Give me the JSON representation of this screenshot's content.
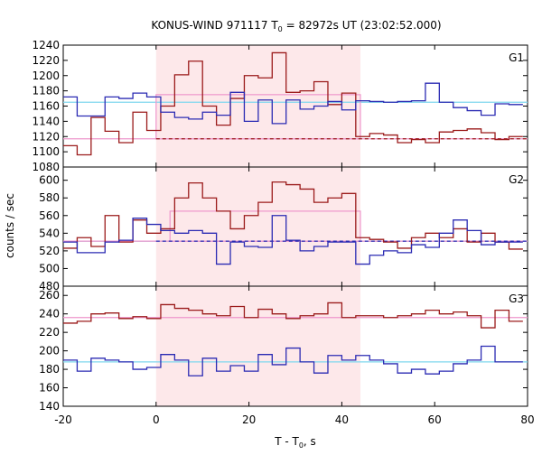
{
  "chart_data": {
    "type": "line",
    "title": "KONUS-WIND 971117 T",
    "title_sub": "0",
    "title_rest": " = 82972s UT (23:02:52.000)",
    "xlabel": "T - T",
    "xlabel_sub": "0",
    "xlabel_rest": ", s",
    "ylabel": "counts / sec",
    "xlim": [
      -20,
      80
    ],
    "xticks": [
      "-20",
      "0",
      "20",
      "40",
      "60",
      "80"
    ],
    "shaded_interval": [
      0,
      44
    ],
    "shade_color": "#fde8ea",
    "panels": [
      {
        "name": "G1",
        "ylim": [
          1080,
          1240
        ],
        "yticks": [
          1080,
          1100,
          1120,
          1140,
          1160,
          1180,
          1200,
          1220,
          1240
        ],
        "series": [
          {
            "color": "#9b1b1b",
            "edges": [
              -20,
              -17,
              -14,
              -11,
              -8,
              -5,
              -2,
              1,
              4,
              7,
              10,
              13,
              16,
              19,
              22,
              25,
              28,
              31,
              34,
              37,
              40,
              43,
              46,
              49,
              52,
              55,
              58,
              61,
              64,
              67,
              70,
              73,
              76,
              79
            ],
            "values": [
              1108,
              1096,
              1145,
              1127,
              1112,
              1152,
              1128,
              1160,
              1201,
              1219,
              1160,
              1135,
              1170,
              1200,
              1197,
              1230,
              1178,
              1180,
              1192,
              1162,
              1177,
              1120,
              1124,
              1122,
              1112,
              1116,
              1112,
              1126,
              1128,
              1130,
              1125,
              1116,
              1120
            ]
          },
          {
            "color": "#2b2bb3",
            "edges": [
              -20,
              -17,
              -14,
              -11,
              -8,
              -5,
              -2,
              1,
              4,
              7,
              10,
              13,
              16,
              19,
              22,
              25,
              28,
              31,
              34,
              37,
              40,
              43,
              46,
              49,
              52,
              55,
              58,
              61,
              64,
              67,
              70,
              73,
              76,
              79
            ],
            "values": [
              1172,
              1147,
              1147,
              1172,
              1170,
              1177,
              1172,
              1152,
              1145,
              1143,
              1152,
              1148,
              1178,
              1140,
              1168,
              1137,
              1168,
              1156,
              1160,
              1166,
              1155,
              1167,
              1166,
              1165,
              1166,
              1167,
              1190,
              1165,
              1158,
              1154,
              1148,
              1163,
              1162
            ]
          }
        ],
        "bg_lines": [
          {
            "color": "#7fd7ee",
            "level": 1165
          },
          {
            "color": "#ee96cc",
            "level": 1117
          }
        ],
        "dashed_bg": {
          "color": "#9b1b1b",
          "level": 1117
        },
        "box": {
          "color": "#ee96cc",
          "x0": 0,
          "x1": 44,
          "top": 1175,
          "bottom": 1117
        }
      },
      {
        "name": "G2",
        "ylim": [
          480,
          615
        ],
        "yticks": [
          480,
          500,
          520,
          540,
          560,
          580,
          600
        ],
        "series": [
          {
            "color": "#9b1b1b",
            "edges": [
              -20,
              -17,
              -14,
              -11,
              -8,
              -5,
              -2,
              1,
              4,
              7,
              10,
              13,
              16,
              19,
              22,
              25,
              28,
              31,
              34,
              37,
              40,
              43,
              46,
              49,
              52,
              55,
              58,
              61,
              64,
              67,
              70,
              73,
              76,
              79
            ],
            "values": [
              523,
              535,
              525,
              560,
              530,
              555,
              540,
              545,
              580,
              597,
              580,
              565,
              545,
              560,
              575,
              598,
              595,
              590,
              575,
              580,
              585,
              535,
              533,
              530,
              523,
              535,
              540,
              535,
              545,
              530,
              540,
              530,
              522
            ]
          },
          {
            "color": "#2b2bb3",
            "edges": [
              -20,
              -17,
              -14,
              -11,
              -8,
              -5,
              -2,
              1,
              4,
              7,
              10,
              13,
              16,
              19,
              22,
              25,
              28,
              31,
              34,
              37,
              40,
              43,
              46,
              49,
              52,
              55,
              58,
              61,
              64,
              67,
              70,
              73,
              76,
              79
            ],
            "values": [
              530,
              518,
              518,
              530,
              532,
              557,
              550,
              543,
              540,
              543,
              540,
              505,
              530,
              525,
              524,
              560,
              532,
              520,
              525,
              530,
              530,
              505,
              515,
              520,
              518,
              527,
              524,
              540,
              555,
              543,
              527,
              530,
              530
            ]
          }
        ],
        "bg_lines": [
          {
            "color": "#7fd7ee",
            "level": 531
          },
          {
            "color": "#ee96cc",
            "level": 531
          }
        ],
        "dashed_bg": {
          "color": "#2b2bb3",
          "level": 531
        },
        "box": {
          "color": "#ee96cc",
          "x0": 3,
          "x1": 44,
          "top": 565,
          "bottom": 531
        }
      },
      {
        "name": "G3",
        "ylim": [
          140,
          270
        ],
        "yticks": [
          140,
          160,
          180,
          200,
          220,
          240,
          260
        ],
        "series": [
          {
            "color": "#9b1b1b",
            "edges": [
              -20,
              -17,
              -14,
              -11,
              -8,
              -5,
              -2,
              1,
              4,
              7,
              10,
              13,
              16,
              19,
              22,
              25,
              28,
              31,
              34,
              37,
              40,
              43,
              46,
              49,
              52,
              55,
              58,
              61,
              64,
              67,
              70,
              73,
              76,
              79
            ],
            "values": [
              230,
              232,
              240,
              241,
              235,
              237,
              235,
              250,
              246,
              244,
              240,
              238,
              248,
              236,
              245,
              240,
              235,
              238,
              240,
              252,
              236,
              238,
              238,
              236,
              238,
              240,
              244,
              240,
              242,
              238,
              225,
              244,
              232
            ]
          },
          {
            "color": "#2b2bb3",
            "edges": [
              -20,
              -17,
              -14,
              -11,
              -8,
              -5,
              -2,
              1,
              4,
              7,
              10,
              13,
              16,
              19,
              22,
              25,
              28,
              31,
              34,
              37,
              40,
              43,
              46,
              49,
              52,
              55,
              58,
              61,
              64,
              67,
              70,
              73,
              76,
              79
            ],
            "values": [
              190,
              178,
              192,
              190,
              188,
              180,
              182,
              196,
              190,
              173,
              192,
              178,
              184,
              178,
              196,
              185,
              203,
              188,
              176,
              195,
              190,
              195,
              190,
              186,
              176,
              180,
              175,
              178,
              186,
              190,
              205,
              188,
              188
            ]
          }
        ],
        "bg_lines": [
          {
            "color": "#7fd7ee",
            "level": 188
          },
          {
            "color": "#ee96cc",
            "level": 236
          }
        ]
      }
    ]
  }
}
